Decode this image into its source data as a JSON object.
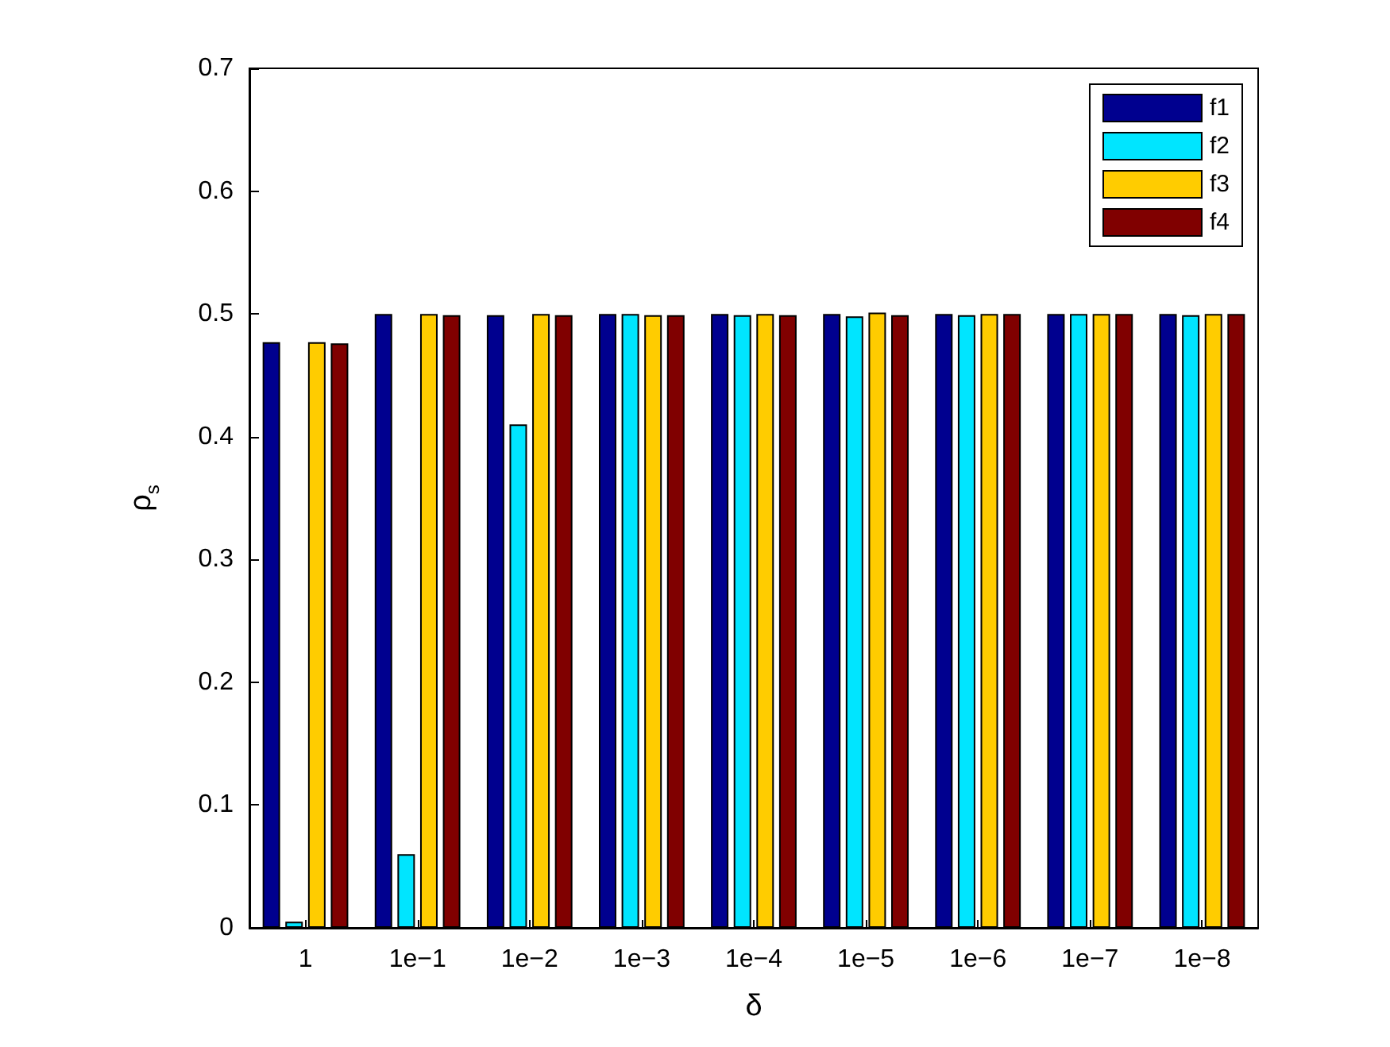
{
  "chart_data": {
    "type": "bar",
    "xlabel": "δ",
    "ylabel": "ρ$_{s}$",
    "categories": [
      "1",
      "1e−1",
      "1e−2",
      "1e−3",
      "1e−4",
      "1e−5",
      "1e−6",
      "1e−7",
      "1e−8"
    ],
    "series": [
      {
        "name": "f1",
        "color": "#00008f",
        "values": [
          0.477,
          0.5,
          0.499,
          0.5,
          0.5,
          0.5,
          0.5,
          0.5,
          0.5
        ]
      },
      {
        "name": "f2",
        "color": "#00e5ff",
        "values": [
          0.005,
          0.06,
          0.41,
          0.5,
          0.499,
          0.498,
          0.499,
          0.5,
          0.499
        ]
      },
      {
        "name": "f3",
        "color": "#ffcc00",
        "values": [
          0.477,
          0.5,
          0.5,
          0.499,
          0.5,
          0.501,
          0.5,
          0.5,
          0.5
        ]
      },
      {
        "name": "f4",
        "color": "#800000",
        "values": [
          0.476,
          0.499,
          0.499,
          0.499,
          0.499,
          0.499,
          0.5,
          0.5,
          0.5
        ]
      }
    ],
    "ylim": [
      0,
      0.7
    ],
    "yticks": [
      0,
      0.1,
      0.2,
      0.3,
      0.4,
      0.5,
      0.6,
      0.7
    ],
    "grid": false,
    "legend": "top right"
  }
}
